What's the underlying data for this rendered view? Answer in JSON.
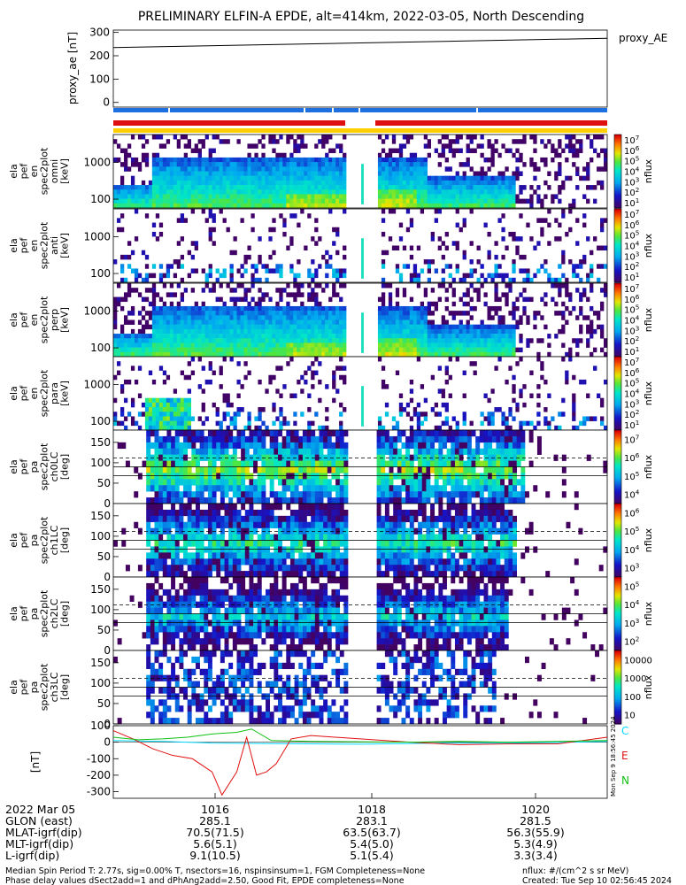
{
  "header": {
    "title": "PRELIMINARY ELFIN-A EPDE, alt=414km, 2022-03-05, North Descending"
  },
  "colors": {
    "ae_bar_blue": "#1e6fe0",
    "eph_bar_red": "#e01010",
    "eph_bar_yellow": "#ffd000",
    "spec_red": "#d82424",
    "spec_green": "#18d818",
    "spec_cyan": "#18d8d8",
    "spec_blue": "#1818e0"
  },
  "chart_data": [
    {
      "type": "line",
      "name": "proxy_ae",
      "ylabel": "proxy_ae [nT]",
      "ylim": [
        -20,
        310
      ],
      "yticks": [
        "300",
        "200",
        "100",
        "0"
      ],
      "legend": "proxy_AE",
      "x_minutes": [
        0,
        10
      ],
      "values": [
        235,
        275
      ]
    },
    {
      "type": "heatmap",
      "name": "energy-spectrogram-1",
      "ylabel": [
        "ela",
        "pef",
        "en",
        "spec2plot",
        "omni",
        "[keV]"
      ],
      "yticks": [
        "1000",
        "100"
      ],
      "colorbar_label": "nflux",
      "colorbar_ticks": [
        "10^7",
        "10^6",
        "10^5",
        "10^4",
        "10^3",
        "10^2",
        "10^1"
      ]
    },
    {
      "type": "heatmap",
      "name": "energy-spectrogram-2",
      "ylabel": [
        "ela",
        "pef",
        "en",
        "spec2plot",
        "anti",
        "[keV]"
      ],
      "yticks": [
        "1000",
        "100"
      ],
      "colorbar_label": "nflux",
      "colorbar_ticks": [
        "10^7",
        "10^6",
        "10^5",
        "10^4",
        "10^3",
        "10^2",
        "10^1"
      ]
    },
    {
      "type": "heatmap",
      "name": "energy-spectrogram-3",
      "ylabel": [
        "ela",
        "pef",
        "en",
        "spec2plot",
        "perp",
        "[keV]"
      ],
      "yticks": [
        "1000",
        "100"
      ],
      "colorbar_label": "nflux",
      "colorbar_ticks": [
        "10^7",
        "10^6",
        "10^5",
        "10^4",
        "10^3",
        "10^2",
        "10^1"
      ]
    },
    {
      "type": "heatmap",
      "name": "energy-spectrogram-4",
      "ylabel": [
        "ela",
        "pef",
        "en",
        "spec2plot",
        "para",
        "[keV]"
      ],
      "yticks": [
        "1000",
        "100"
      ],
      "colorbar_label": "nflux",
      "colorbar_ticks": [
        "10^7",
        "10^6",
        "10^5",
        "10^4",
        "10^3",
        "10^2",
        "10^1"
      ]
    },
    {
      "type": "heatmap",
      "name": "pitch-angle-ch0",
      "ylabel": [
        "ela",
        "pef",
        "pa",
        "spec2plot",
        "ch0LC",
        "[deg]"
      ],
      "yticks": [
        "150",
        "100",
        "50",
        "0"
      ],
      "colorbar_label": "nflux",
      "colorbar_ticks": [
        "10^7",
        "10^6",
        "10^5",
        "10^4"
      ]
    },
    {
      "type": "heatmap",
      "name": "pitch-angle-ch1",
      "ylabel": [
        "ela",
        "pef",
        "pa",
        "spec2plot",
        "ch1LC",
        "[deg]"
      ],
      "yticks": [
        "150",
        "100",
        "50",
        "0"
      ],
      "colorbar_label": "nflux",
      "colorbar_ticks": [
        "10^6",
        "10^5",
        "10^4",
        "10^3"
      ]
    },
    {
      "type": "heatmap",
      "name": "pitch-angle-ch2",
      "ylabel": [
        "ela",
        "pef",
        "pa",
        "spec2plot",
        "ch2LC",
        "[deg]"
      ],
      "yticks": [
        "150",
        "100",
        "50",
        "0"
      ],
      "colorbar_label": "nflux",
      "colorbar_ticks": [
        "10^5",
        "10^4",
        "10^3",
        "10^2"
      ]
    },
    {
      "type": "heatmap",
      "name": "pitch-angle-ch3",
      "ylabel": [
        "ela",
        "pef",
        "pa",
        "spec2plot",
        "ch3LC",
        "[deg]"
      ],
      "yticks": [
        "150",
        "100",
        "50",
        "0"
      ],
      "colorbar_label": "nflux",
      "colorbar_ticks": [
        "10000",
        "1000",
        "100",
        "10"
      ]
    },
    {
      "type": "line",
      "name": "magnetic-field",
      "ylabel": "[nT]",
      "ylim": [
        -340,
        100
      ],
      "yticks": [
        "100",
        "0",
        "-100",
        "-200",
        "-300"
      ],
      "legend": [
        "C",
        "E",
        "N"
      ],
      "series": [
        {
          "name": "C",
          "color": "#00d8ff",
          "x": [
            0,
            1,
            2,
            3,
            4,
            5,
            6,
            7,
            8,
            9,
            10
          ],
          "values": [
            10,
            5,
            -5,
            -8,
            -10,
            -12,
            -8,
            -5,
            -5,
            -2,
            5
          ]
        },
        {
          "name": "E",
          "color": "#e01010",
          "x": [
            0,
            0.4,
            0.8,
            1.2,
            1.6,
            2.0,
            2.2,
            2.5,
            2.7,
            2.9,
            3.1,
            3.3,
            3.6,
            4.0,
            5.0,
            6.0,
            7.0,
            8.0,
            9.0,
            10.0
          ],
          "values": [
            70,
            20,
            -40,
            -80,
            -100,
            -180,
            -320,
            -180,
            30,
            -200,
            -180,
            -130,
            20,
            40,
            20,
            0,
            -15,
            -10,
            -10,
            30
          ]
        },
        {
          "name": "N",
          "color": "#10c010",
          "x": [
            0,
            0.5,
            1,
            1.5,
            2,
            2.5,
            2.8,
            3.2,
            4,
            6,
            7,
            8,
            9,
            10
          ],
          "values": [
            30,
            15,
            20,
            30,
            50,
            60,
            80,
            10,
            5,
            0,
            5,
            0,
            5,
            10
          ]
        }
      ]
    }
  ],
  "time_axis": {
    "date": "2022 Mar 05",
    "ticks": [
      "1016",
      "1018",
      "1020"
    ],
    "rows": [
      {
        "label": "GLON (east)",
        "values": [
          "285.1",
          "283.1",
          "281.5"
        ]
      },
      {
        "label": "MLAT-igrf(dip)",
        "values": [
          "70.5(71.5)",
          "63.5(63.7)",
          "56.3(55.9)"
        ]
      },
      {
        "label": "MLT-igrf(dip)",
        "values": [
          "5.6(5.1)",
          "5.4(5.0)",
          "5.3(4.9)"
        ]
      },
      {
        "label": "L-igrf(dip)",
        "values": [
          "9.1(10.5)",
          "5.1(5.4)",
          "3.3(3.4)"
        ]
      }
    ]
  },
  "footer": {
    "line1": "Median Spin Period T: 2.77s, sig=0.00% T, nsectors=16, nspinsinsum=1, FGM Completeness=None",
    "line2": "Phase delay values dSect2add=1 and dPhAng2add=2.50, Good Fit, EPDE completeness=None",
    "units": "nflux: #/(cm^2 s sr MeV)",
    "created": "Created: Tue Sep 10 02:56:45 2024",
    "side_stamp": "Mon Sep 9 18:56:45 2024"
  }
}
